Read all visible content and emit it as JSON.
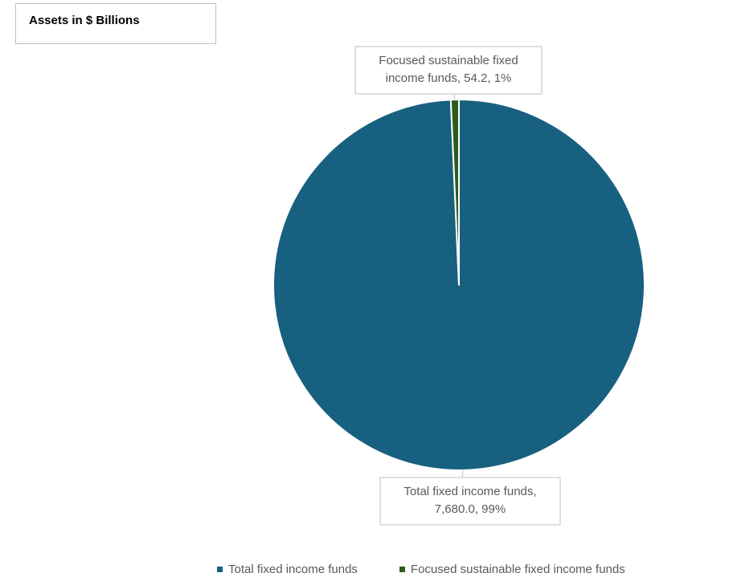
{
  "title": "Assets in $ Billions",
  "chart_data": {
    "type": "pie",
    "title": "Assets in $ Billions",
    "slices": [
      {
        "name": "Total fixed income funds",
        "value": 7680.0,
        "percent": "99%",
        "color": "#17607f",
        "label_lines": [
          "Total fixed income funds,",
          "7,680.0, 99%"
        ]
      },
      {
        "name": "Focused sustainable fixed income funds",
        "value": 54.2,
        "percent": "1%",
        "color": "#2e5b1e",
        "label_lines": [
          "Focused sustainable fixed",
          "income funds, 54.2, 1%"
        ]
      }
    ],
    "legend": {
      "position": "bottom",
      "items": [
        "Total fixed income funds",
        "Focused sustainable fixed income funds"
      ]
    }
  }
}
